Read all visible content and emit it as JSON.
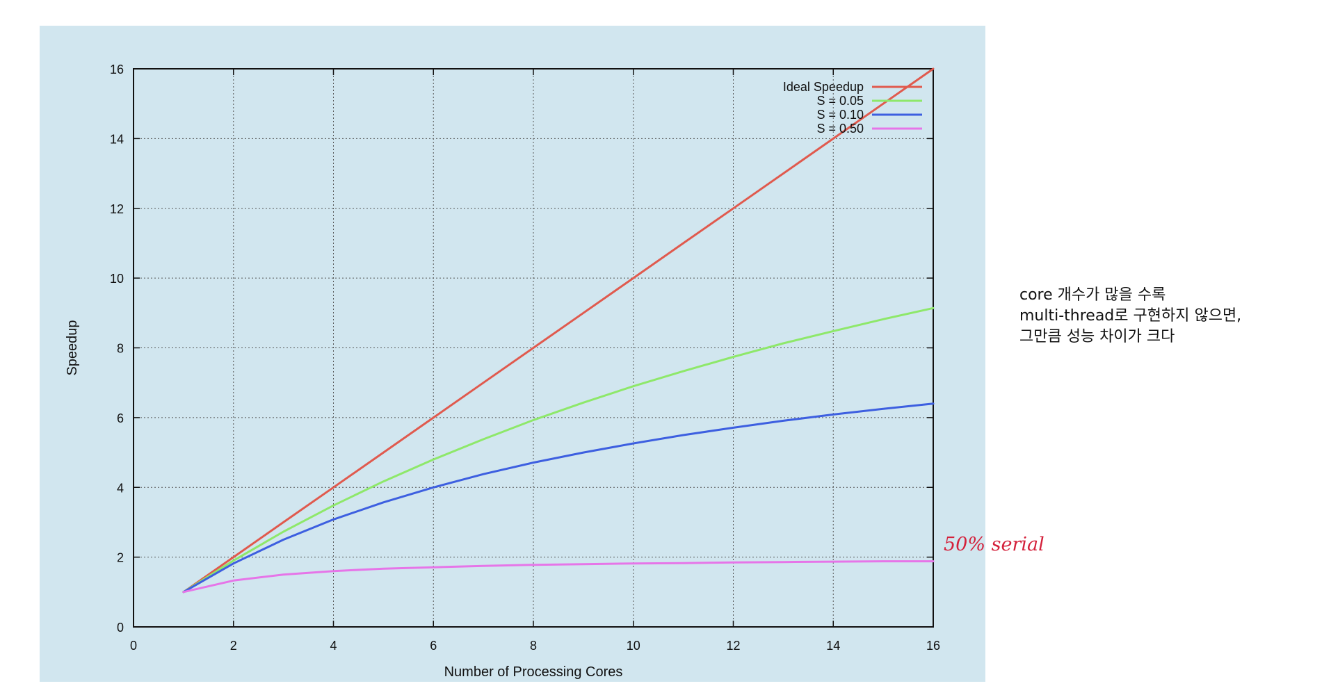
{
  "chart_data": {
    "type": "line",
    "xlabel": "Number of Processing Cores",
    "ylabel": "Speedup",
    "xlim": [
      0,
      16
    ],
    "ylim": [
      0,
      16
    ],
    "xticks": [
      0,
      2,
      4,
      6,
      8,
      10,
      12,
      14,
      16
    ],
    "yticks": [
      0,
      2,
      4,
      6,
      8,
      10,
      12,
      14,
      16
    ],
    "grid": true,
    "legend_position": "top-right",
    "x": [
      1,
      2,
      3,
      4,
      5,
      6,
      7,
      8,
      9,
      10,
      11,
      12,
      13,
      14,
      15,
      16
    ],
    "series": [
      {
        "name": "Ideal Speedup",
        "color": "#e05a4e",
        "values": [
          1,
          2,
          3,
          4,
          5,
          6,
          7,
          8,
          9,
          10,
          11,
          12,
          13,
          14,
          15,
          16
        ]
      },
      {
        "name": "S = 0.05",
        "color": "#8ee86a",
        "values": [
          1,
          1.9,
          2.73,
          3.48,
          4.17,
          4.8,
          5.38,
          5.93,
          6.43,
          6.9,
          7.33,
          7.74,
          8.13,
          8.48,
          8.82,
          9.14
        ]
      },
      {
        "name": "S = 0.10",
        "color": "#3d5fe0",
        "values": [
          1,
          1.82,
          2.5,
          3.08,
          3.57,
          4.0,
          4.38,
          4.71,
          5.0,
          5.26,
          5.5,
          5.71,
          5.91,
          6.09,
          6.25,
          6.4
        ]
      },
      {
        "name": "S = 0.50",
        "color": "#e675e8",
        "values": [
          1,
          1.33,
          1.5,
          1.6,
          1.67,
          1.71,
          1.75,
          1.78,
          1.8,
          1.82,
          1.83,
          1.85,
          1.86,
          1.87,
          1.88,
          1.88
        ]
      }
    ]
  },
  "annotation": {
    "text": "50% serial",
    "color": "#d4213b"
  },
  "side_note": {
    "lines": [
      "core 개수가 많을 수록",
      "multi-thread로 구현하지 않으면,",
      "그만큼 성능 차이가 크다"
    ]
  }
}
